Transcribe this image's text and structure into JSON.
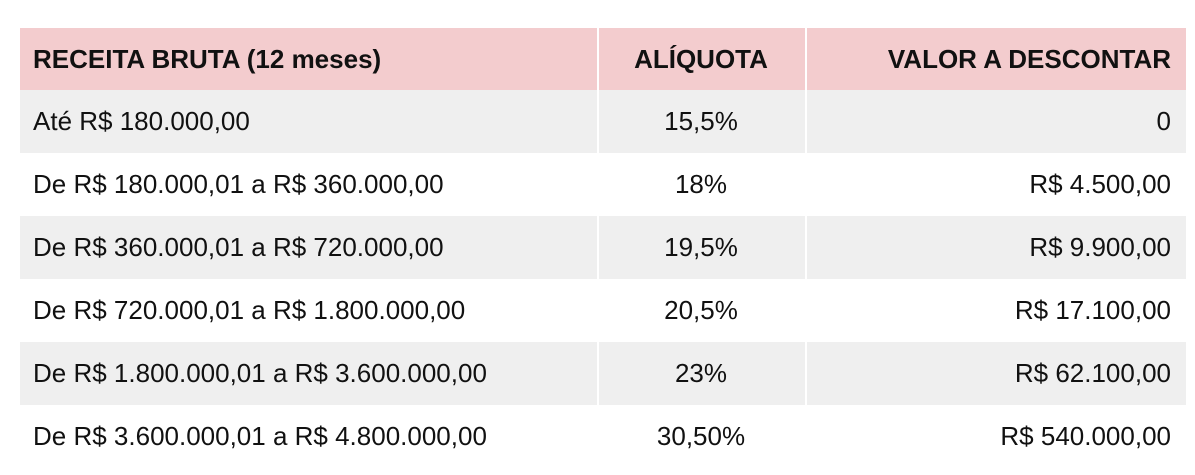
{
  "table": {
    "headers": [
      "RECEITA BRUTA (12 meses)",
      "ALÍQUOTA",
      "VALOR A DESCONTAR"
    ],
    "rows": [
      [
        "Até R$ 180.000,00",
        "15,5%",
        "0"
      ],
      [
        "De R$ 180.000,01 a R$ 360.000,00",
        "18%",
        "R$ 4.500,00"
      ],
      [
        "De R$ 360.000,01 a R$ 720.000,00",
        "19,5%",
        "R$ 9.900,00"
      ],
      [
        "De R$ 720.000,01 a R$ 1.800.000,00",
        "20,5%",
        "R$ 17.100,00"
      ],
      [
        "De R$ 1.800.000,01 a R$ 3.600.000,00",
        "23%",
        "R$ 62.100,00"
      ],
      [
        "De R$ 3.600.000,01 a R$ 4.800.000,00",
        "30,50%",
        "R$ 540.000,00"
      ]
    ]
  },
  "colors": {
    "header_background": "#f3ccce",
    "stripe_background": "#efefef"
  }
}
